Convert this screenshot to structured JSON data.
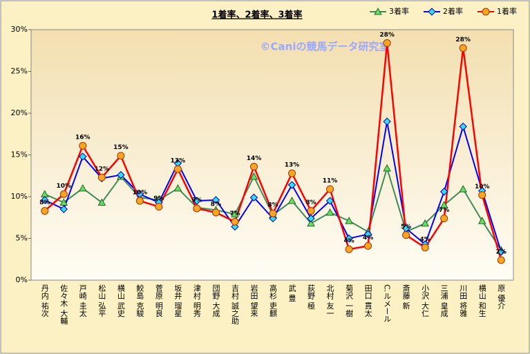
{
  "chart_data": {
    "type": "line",
    "title": "1着率、2着率、3着率",
    "annotation": "©Caniの競馬データ研究室",
    "categories": [
      "丹内 祐次",
      "佐々木 大輔",
      "戸崎 圭太",
      "松山 弘平",
      "横山 武史",
      "鮫島 克駿",
      "菅原 明良",
      "坂井 瑠星",
      "津村 明秀",
      "団野 大成",
      "吉村 誠之助",
      "岩田 望来",
      "高杉 吏麒",
      "武 豊",
      "荻野 極",
      "北村 友一",
      "菊沢 一樹",
      "田口 貫太",
      "C.ルメール",
      "斎藤 新",
      "小沢 大仁",
      "三浦 皇成",
      "川田 将雅",
      "横山 和生",
      "原 優介"
    ],
    "series": [
      {
        "name": "3着率",
        "color": "#3c8c5a",
        "marker": "triangle",
        "values": [
          10.3,
          9.3,
          11.0,
          9.3,
          12.4,
          9.9,
          9.6,
          11.0,
          8.7,
          8.4,
          7.9,
          12.4,
          7.8,
          9.5,
          6.8,
          8.1,
          7.1,
          5.8,
          13.4,
          5.8,
          6.8,
          9.0,
          10.9,
          7.1,
          3.6
        ]
      },
      {
        "name": "2着率",
        "color": "#0000ff",
        "marker": "diamond",
        "values": [
          9.6,
          8.5,
          14.8,
          12.2,
          12.6,
          10.3,
          9.3,
          14.0,
          9.5,
          9.6,
          6.4,
          9.9,
          7.4,
          11.4,
          7.4,
          9.5,
          5.0,
          5.5,
          19.0,
          6.2,
          4.3,
          10.6,
          18.4,
          10.7,
          3.4
        ]
      },
      {
        "name": "1着率",
        "color": "#ff0000",
        "marker": "circle",
        "values": [
          8.3,
          10.3,
          16.1,
          12.3,
          14.9,
          9.5,
          8.8,
          13.3,
          8.6,
          8.1,
          7.0,
          13.6,
          8.0,
          12.8,
          8.3,
          10.9,
          3.7,
          4.1,
          28.4,
          5.4,
          3.9,
          7.4,
          27.8,
          10.2,
          2.4
        ],
        "value_labels": [
          "8%",
          "10%",
          "16%",
          "12%",
          "15%",
          "10%",
          "9%",
          "13%",
          "9%",
          "8%",
          "7%",
          "14%",
          "8%",
          "13%",
          "8%",
          "11%",
          "4%",
          "4%",
          "28%",
          "5%",
          "4%",
          "7%",
          "28%",
          "10%",
          "2%"
        ]
      }
    ],
    "ylim": [
      0,
      30
    ],
    "yticks": [
      {
        "value": 0,
        "label": "0%"
      },
      {
        "value": 5,
        "label": "5%"
      },
      {
        "value": 10,
        "label": "10%"
      },
      {
        "value": 15,
        "label": "15%"
      },
      {
        "value": 20,
        "label": "20%"
      },
      {
        "value": 25,
        "label": "25%"
      },
      {
        "value": 30,
        "label": "30%"
      }
    ],
    "legend": "top-right"
  }
}
